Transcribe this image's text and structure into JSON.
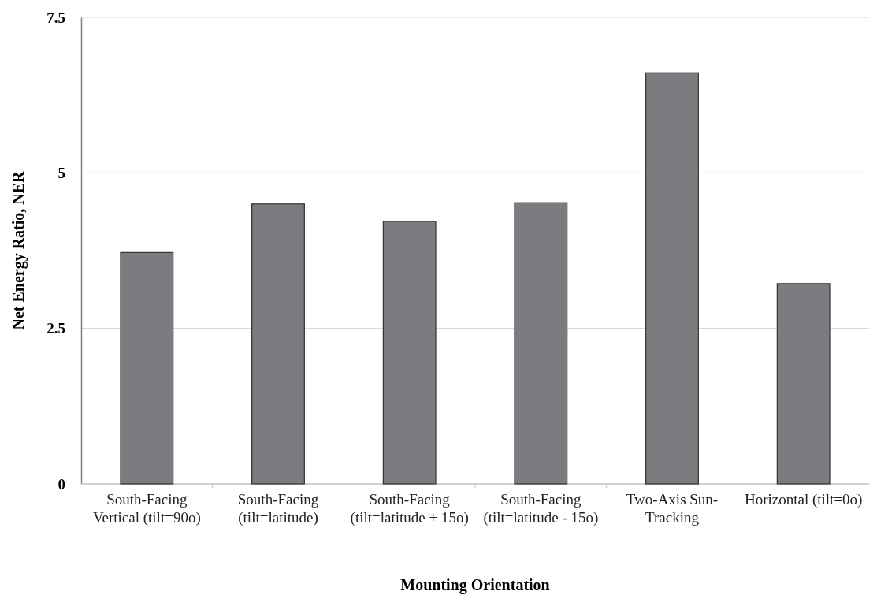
{
  "chart_data": {
    "type": "bar",
    "xlabel": "Mounting Orientation",
    "ylabel": "Net Energy Ratio, NER",
    "categories": [
      "South-Facing Vertical (tilt=90o)",
      "South-Facing (tilt=latitude)",
      "South-Facing (tilt=latitude + 15o)",
      "South-Facing (tilt=latitude - 15o)",
      "Two-Axis Sun-Tracking",
      "Horizontal (tilt=0o)"
    ],
    "values": [
      3.72,
      4.5,
      4.22,
      4.52,
      6.61,
      3.22
    ],
    "color": "#7a7c80",
    "ylim": [
      0,
      7.5
    ],
    "yticks": [
      0,
      2.5,
      5,
      7.5
    ],
    "grid": "y"
  }
}
